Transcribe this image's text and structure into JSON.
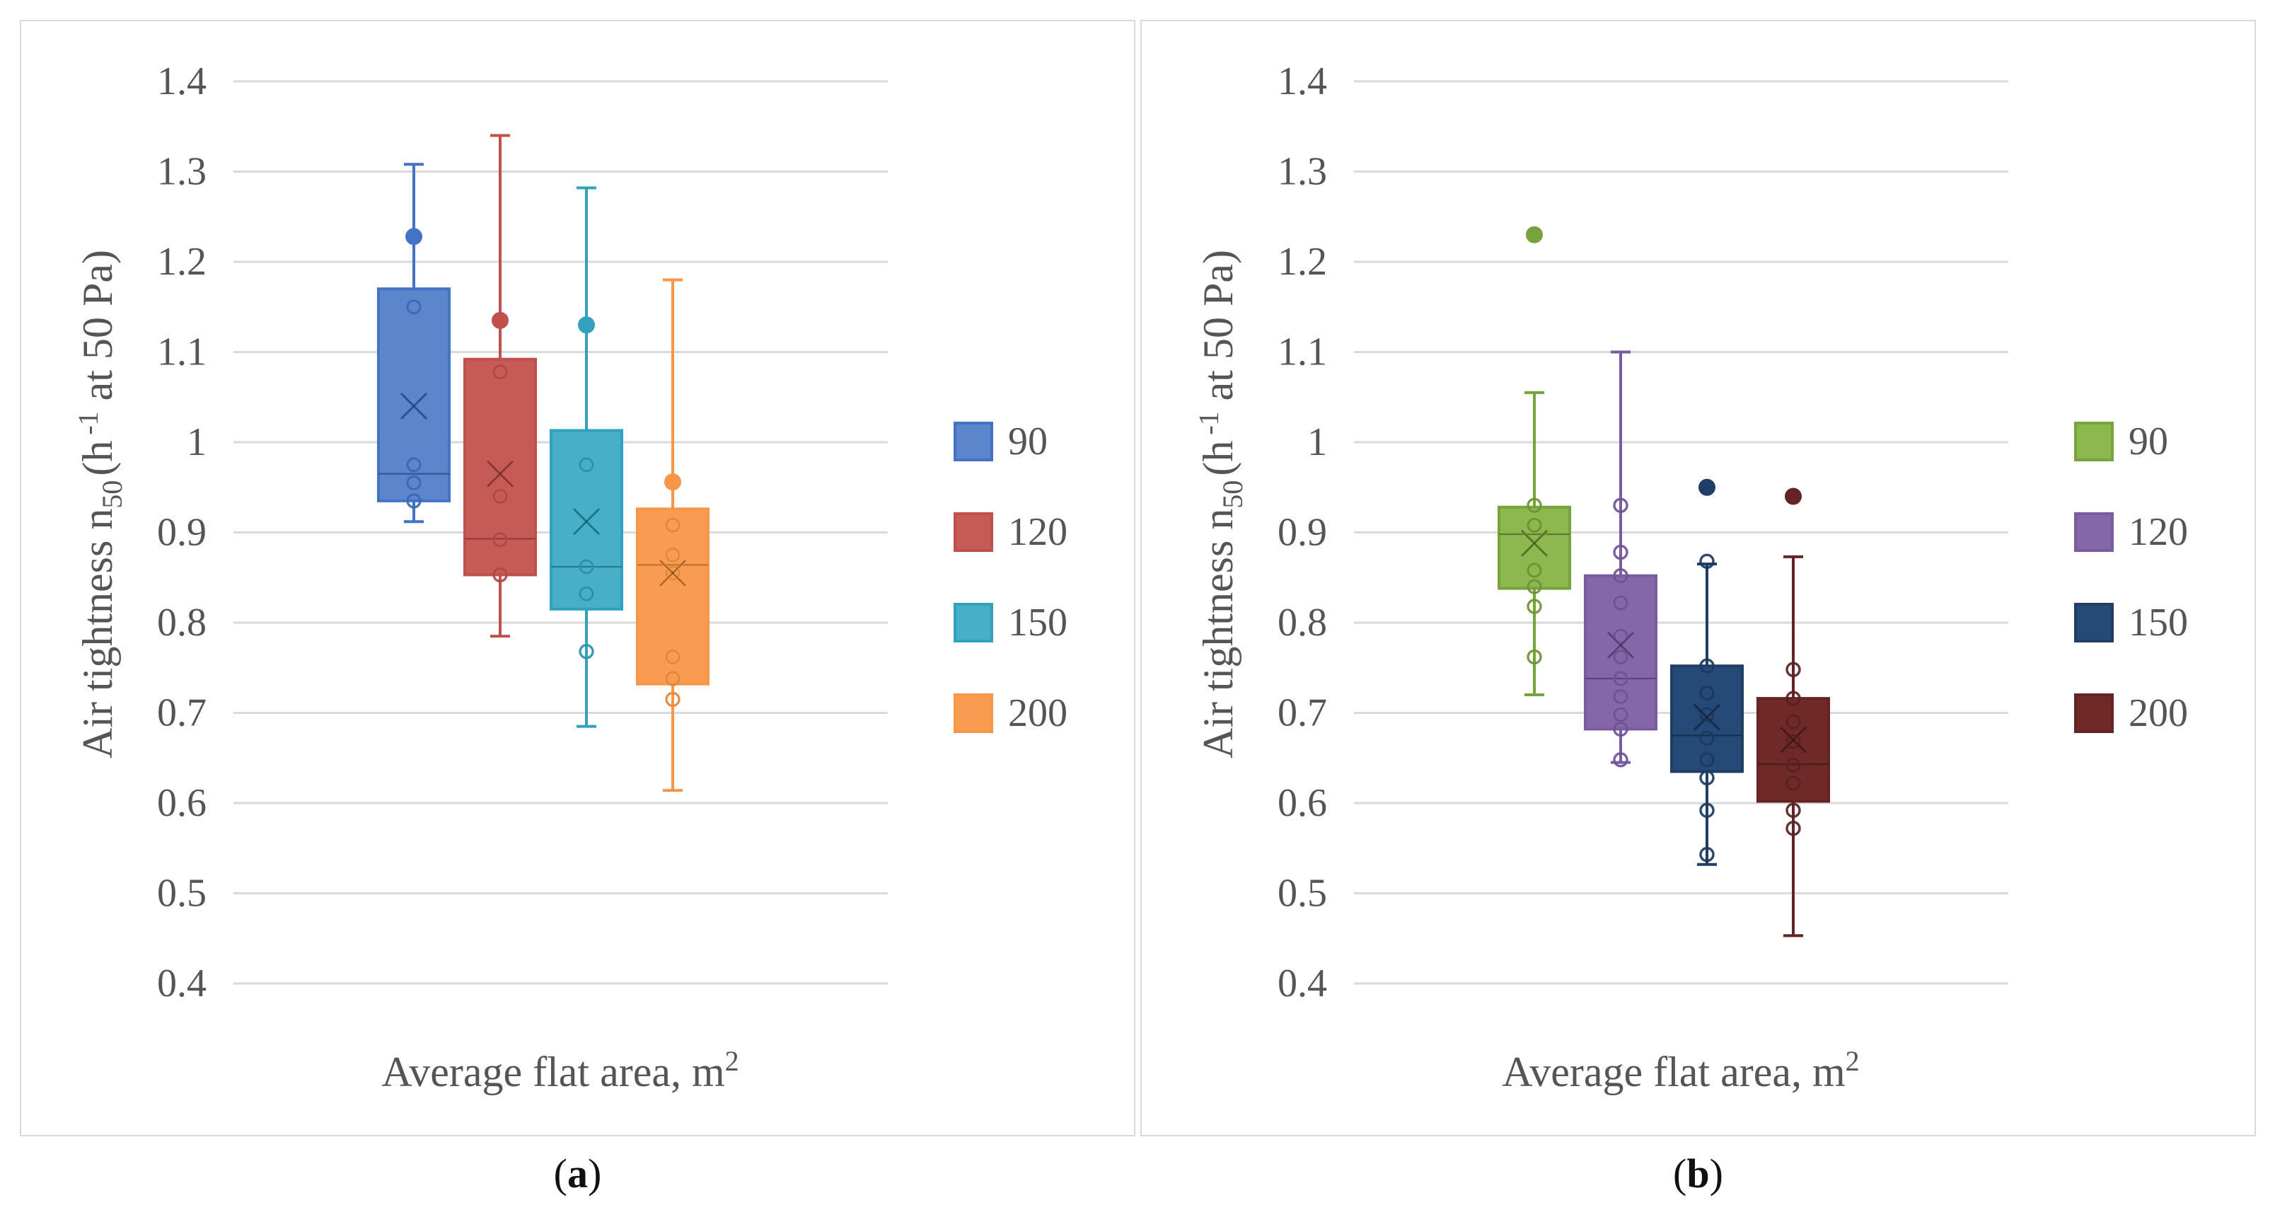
{
  "chart_data": [
    {
      "type": "box",
      "panel_label": "a",
      "xlabel": "Average flat area, m",
      "xlabel_sup": "2",
      "ylabel_main": "Air tightness n",
      "ylabel_sub": "50",
      "ylabel_rest": "(h",
      "ylabel_sup": "-1",
      "ylabel_end": " at 50 Pa)",
      "ylim": [
        0.4,
        1.4
      ],
      "yticks": [
        "0.4",
        "0.5",
        "0.6",
        "0.7",
        "0.8",
        "0.9",
        "1",
        "1.1",
        "1.2",
        "1.3",
        "1.4"
      ],
      "series": [
        {
          "name": "90",
          "color": "#4472c4",
          "fill": "#5b86cc",
          "min": 0.912,
          "q1": 0.935,
          "median": 0.965,
          "q3": 1.17,
          "max": 1.308,
          "mean": 1.04,
          "points": [
            0.935,
            0.955,
            0.975,
            1.15,
            1.228
          ],
          "outliers": []
        },
        {
          "name": "120",
          "color": "#c0504d",
          "fill": "#c65a57",
          "min": 0.785,
          "q1": 0.853,
          "median": 0.893,
          "q3": 1.092,
          "max": 1.34,
          "mean": 0.965,
          "points": [
            0.853,
            0.892,
            0.94,
            1.078,
            1.135
          ],
          "outliers": []
        },
        {
          "name": "150",
          "color": "#31a2be",
          "fill": "#47b0c8",
          "min": 0.685,
          "q1": 0.815,
          "median": 0.862,
          "q3": 1.013,
          "max": 1.282,
          "mean": 0.912,
          "points": [
            0.768,
            0.832,
            0.862,
            0.975,
            1.13
          ],
          "outliers": []
        },
        {
          "name": "200",
          "color": "#f79646",
          "fill": "#f89c51",
          "min": 0.614,
          "q1": 0.732,
          "median": 0.864,
          "q3": 0.926,
          "max": 1.18,
          "mean": 0.855,
          "points": [
            0.715,
            0.738,
            0.762,
            0.855,
            0.875,
            0.908,
            0.956
          ],
          "outliers": []
        }
      ]
    },
    {
      "type": "box",
      "panel_label": "b",
      "xlabel": "Average flat area, m",
      "xlabel_sup": "2",
      "ylabel_main": "Air tightness n",
      "ylabel_sub": "50",
      "ylabel_rest": "(h",
      "ylabel_sup": "-1",
      "ylabel_end": " at 50 Pa)",
      "ylim": [
        0.4,
        1.4
      ],
      "yticks": [
        "0.4",
        "0.5",
        "0.6",
        "0.7",
        "0.8",
        "0.9",
        "1",
        "1.1",
        "1.2",
        "1.3",
        "1.4"
      ],
      "series": [
        {
          "name": "90",
          "color": "#77a33c",
          "fill": "#8db84f",
          "min": 0.72,
          "q1": 0.838,
          "median": 0.898,
          "q3": 0.928,
          "max": 1.055,
          "mean": 0.888,
          "points": [
            0.762,
            0.818,
            0.84,
            0.858,
            0.908,
            0.93
          ],
          "outliers": [
            1.23
          ]
        },
        {
          "name": "120",
          "color": "#7a5ba0",
          "fill": "#8566a8",
          "min": 0.645,
          "q1": 0.682,
          "median": 0.738,
          "q3": 0.852,
          "max": 1.1,
          "mean": 0.775,
          "points": [
            0.648,
            0.682,
            0.698,
            0.718,
            0.738,
            0.762,
            0.785,
            0.822,
            0.852,
            0.878,
            0.93
          ],
          "outliers": []
        },
        {
          "name": "150",
          "color": "#1f3e66",
          "fill": "#264a78",
          "min": 0.532,
          "q1": 0.635,
          "median": 0.675,
          "q3": 0.752,
          "max": 0.865,
          "mean": 0.695,
          "points": [
            0.543,
            0.592,
            0.628,
            0.648,
            0.672,
            0.698,
            0.722,
            0.752,
            0.868
          ],
          "outliers": [
            0.95
          ]
        },
        {
          "name": "200",
          "color": "#632423",
          "fill": "#6f2a28",
          "min": 0.453,
          "q1": 0.602,
          "median": 0.643,
          "q3": 0.716,
          "max": 0.873,
          "mean": 0.67,
          "points": [
            0.572,
            0.592,
            0.622,
            0.642,
            0.668,
            0.69,
            0.716,
            0.748
          ],
          "outliers": [
            0.94
          ]
        }
      ]
    }
  ],
  "captions": [
    {
      "open": "(",
      "letter": "a",
      "close": ")"
    },
    {
      "open": "(",
      "letter": "b",
      "close": ")"
    }
  ]
}
